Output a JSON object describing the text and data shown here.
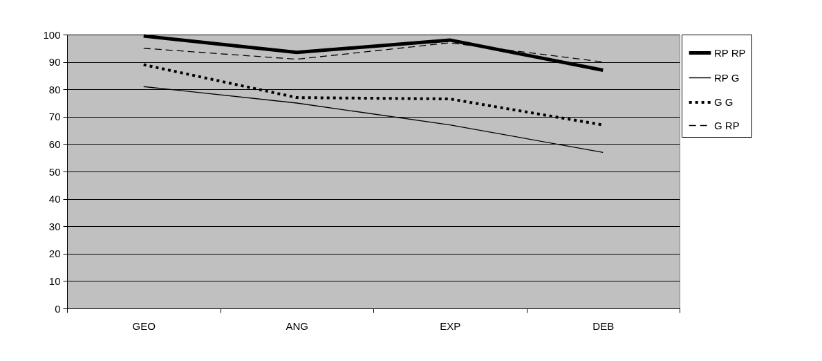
{
  "chart_data": {
    "type": "line",
    "categories": [
      "GEO",
      "ANG",
      "EXP",
      "DEB"
    ],
    "series": [
      {
        "name": "RP RP",
        "color": "#000000",
        "line_style": "solid",
        "values": [
          99.5,
          93.5,
          98,
          87
        ]
      },
      {
        "name": "RP G",
        "color": "#000000",
        "line_style": "solid",
        "values": [
          81,
          75,
          67,
          57
        ]
      },
      {
        "name": "G G",
        "color": "#000000",
        "line_style": "dotted",
        "values": [
          89,
          77,
          76.5,
          67
        ]
      },
      {
        "name": "G RP",
        "color": "#000000",
        "line_style": "dashed",
        "values": [
          95,
          91,
          97,
          90
        ]
      }
    ],
    "ylim": [
      0,
      100
    ],
    "yticks": [
      0,
      10,
      20,
      30,
      40,
      50,
      60,
      70,
      80,
      90,
      100
    ],
    "grid": "y",
    "legend": "right",
    "marker": "none"
  }
}
